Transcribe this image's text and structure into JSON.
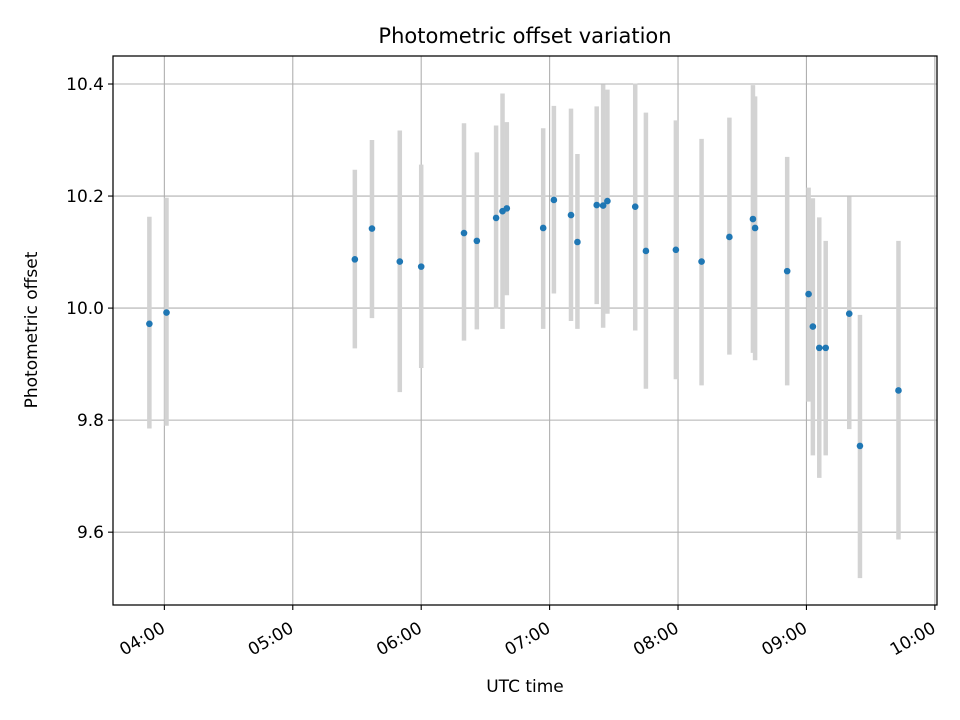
{
  "chart_data": {
    "type": "scatter",
    "title": "Photometric offset variation",
    "xlabel": "UTC time",
    "ylabel": "Photometric offset",
    "x_ticks": [
      "04:00",
      "05:00",
      "06:00",
      "07:00",
      "08:00",
      "09:00",
      "10:00"
    ],
    "y_ticks": [
      "9.6",
      "9.8",
      "10.0",
      "10.2",
      "10.4"
    ],
    "xlim": [
      "03:36",
      "10:01"
    ],
    "ylim": [
      9.47,
      10.45
    ],
    "grid": true,
    "colors": {
      "point": "#1f77b4",
      "errorbar": "#d3d3d3",
      "grid": "#b0b0b0"
    },
    "points": [
      {
        "x": "03:53",
        "y": 9.972,
        "ylow": 9.785,
        "yhigh": 10.163
      },
      {
        "x": "04:01",
        "y": 9.992,
        "ylow": 9.79,
        "yhigh": 10.197
      },
      {
        "x": "05:29",
        "y": 10.087,
        "ylow": 9.928,
        "yhigh": 10.247
      },
      {
        "x": "05:37",
        "y": 10.142,
        "ylow": 9.982,
        "yhigh": 10.3
      },
      {
        "x": "05:50",
        "y": 10.083,
        "ylow": 9.85,
        "yhigh": 10.317
      },
      {
        "x": "06:00",
        "y": 10.074,
        "ylow": 9.893,
        "yhigh": 10.256
      },
      {
        "x": "06:20",
        "y": 10.134,
        "ylow": 9.942,
        "yhigh": 10.33
      },
      {
        "x": "06:26",
        "y": 10.12,
        "ylow": 9.962,
        "yhigh": 10.278
      },
      {
        "x": "06:35",
        "y": 10.161,
        "ylow": 9.999,
        "yhigh": 10.326
      },
      {
        "x": "06:38",
        "y": 10.173,
        "ylow": 9.963,
        "yhigh": 10.383
      },
      {
        "x": "06:40",
        "y": 10.178,
        "ylow": 10.023,
        "yhigh": 10.332
      },
      {
        "x": "06:57",
        "y": 10.143,
        "ylow": 9.963,
        "yhigh": 10.321
      },
      {
        "x": "07:02",
        "y": 10.193,
        "ylow": 10.026,
        "yhigh": 10.361
      },
      {
        "x": "07:10",
        "y": 10.166,
        "ylow": 9.977,
        "yhigh": 10.356
      },
      {
        "x": "07:13",
        "y": 10.118,
        "ylow": 9.963,
        "yhigh": 10.275
      },
      {
        "x": "07:22",
        "y": 10.184,
        "ylow": 10.007,
        "yhigh": 10.36
      },
      {
        "x": "07:25",
        "y": 10.183,
        "ylow": 9.965,
        "yhigh": 10.399
      },
      {
        "x": "07:27",
        "y": 10.191,
        "ylow": 9.99,
        "yhigh": 10.39
      },
      {
        "x": "07:40",
        "y": 10.181,
        "ylow": 9.96,
        "yhigh": 10.401
      },
      {
        "x": "07:45",
        "y": 10.102,
        "ylow": 9.856,
        "yhigh": 10.349
      },
      {
        "x": "07:59",
        "y": 10.104,
        "ylow": 9.873,
        "yhigh": 10.335
      },
      {
        "x": "08:11",
        "y": 10.083,
        "ylow": 9.862,
        "yhigh": 10.302
      },
      {
        "x": "08:24",
        "y": 10.127,
        "ylow": 9.917,
        "yhigh": 10.34
      },
      {
        "x": "08:35",
        "y": 10.159,
        "ylow": 9.92,
        "yhigh": 10.398
      },
      {
        "x": "08:36",
        "y": 10.143,
        "ylow": 9.907,
        "yhigh": 10.378
      },
      {
        "x": "08:51",
        "y": 10.066,
        "ylow": 9.862,
        "yhigh": 10.27
      },
      {
        "x": "09:01",
        "y": 10.025,
        "ylow": 9.833,
        "yhigh": 10.215
      },
      {
        "x": "09:03",
        "y": 9.967,
        "ylow": 9.737,
        "yhigh": 10.196
      },
      {
        "x": "09:06",
        "y": 9.929,
        "ylow": 9.697,
        "yhigh": 10.162
      },
      {
        "x": "09:09",
        "y": 9.929,
        "ylow": 9.737,
        "yhigh": 10.12
      },
      {
        "x": "09:20",
        "y": 9.99,
        "ylow": 9.784,
        "yhigh": 10.199
      },
      {
        "x": "09:25",
        "y": 9.754,
        "ylow": 9.518,
        "yhigh": 9.988
      },
      {
        "x": "09:43",
        "y": 9.853,
        "ylow": 9.587,
        "yhigh": 10.12
      }
    ]
  }
}
